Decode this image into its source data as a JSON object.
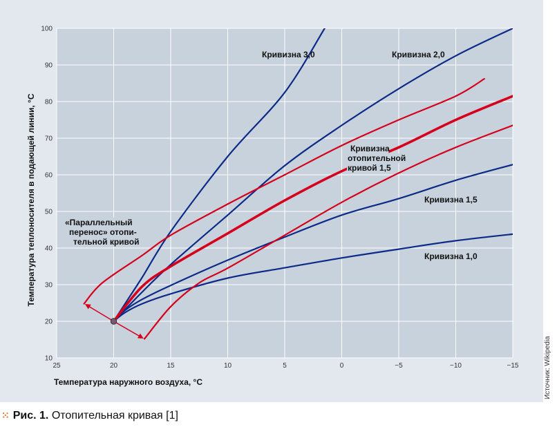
{
  "chart_data": {
    "type": "line",
    "xlabel": "Температура наружного воздуха, °C",
    "ylabel": "Температура теплоносителя в подающей линии, °C",
    "xlim": [
      25,
      -15
    ],
    "ylim": [
      10,
      100
    ],
    "x_ticks": [
      "25",
      "20",
      "15",
      "10",
      "5",
      "0",
      "−5",
      "−10",
      "−15"
    ],
    "x_tick_values": [
      25,
      20,
      15,
      10,
      5,
      0,
      -5,
      -10,
      -15
    ],
    "y_ticks": [
      "10",
      "20",
      "30",
      "40",
      "50",
      "60",
      "70",
      "80",
      "90",
      "100"
    ],
    "y_tick_values": [
      10,
      20,
      30,
      40,
      50,
      60,
      70,
      80,
      90,
      100
    ],
    "grid": true,
    "origin_point": {
      "x": 20,
      "y": 20
    },
    "series": [
      {
        "name": "Кривизна 1,0",
        "color": "#0c2a87",
        "style": "normal",
        "points": [
          [
            20,
            20
          ],
          [
            19,
            22.4
          ],
          [
            17.5,
            24.8
          ],
          [
            15,
            27.5
          ],
          [
            10,
            31.8
          ],
          [
            5,
            34.6
          ],
          [
            0,
            37.3
          ],
          [
            -5,
            39.7
          ],
          [
            -10,
            42
          ],
          [
            -15,
            43.8
          ]
        ]
      },
      {
        "name": "Кривизна 1,5",
        "color": "#0c2a87",
        "style": "normal",
        "points": [
          [
            20,
            20
          ],
          [
            19,
            23
          ],
          [
            17.5,
            26
          ],
          [
            15,
            29.8
          ],
          [
            10,
            36.7
          ],
          [
            5,
            43
          ],
          [
            0,
            49
          ],
          [
            -5,
            53.5
          ],
          [
            -10,
            58.5
          ],
          [
            -15,
            62.8
          ]
        ]
      },
      {
        "name": "Кривизна 2,0",
        "color": "#0c2a87",
        "style": "normal",
        "points": [
          [
            20,
            20
          ],
          [
            18.75,
            24
          ],
          [
            17.5,
            28
          ],
          [
            15,
            35.5
          ],
          [
            10,
            49
          ],
          [
            5,
            62.5
          ],
          [
            0,
            73.5
          ],
          [
            -5,
            83.5
          ],
          [
            -10,
            92.5
          ],
          [
            -15,
            100
          ]
        ]
      },
      {
        "name": "Кривизна 3,0",
        "color": "#0c2a87",
        "style": "normal",
        "points": [
          [
            20,
            20
          ],
          [
            18.75,
            26
          ],
          [
            17.5,
            32
          ],
          [
            15,
            44.5
          ],
          [
            10,
            65
          ],
          [
            5,
            82.5
          ],
          [
            1.5,
            100
          ]
        ]
      },
      {
        "name": "Кривизна отопительной кривой 1,5",
        "color": "#d5001c",
        "style": "bold",
        "points": [
          [
            20,
            20
          ],
          [
            17.5,
            29.5
          ],
          [
            15,
            35
          ],
          [
            10,
            44
          ],
          [
            5,
            53
          ],
          [
            0,
            61
          ],
          [
            -5,
            67.5
          ],
          [
            -10,
            75
          ],
          [
            -15,
            81.5
          ]
        ]
      },
      {
        "name": "Параллельный перенос (вверх)",
        "color": "#d5001c",
        "style": "normal",
        "points": [
          [
            22.6,
            24.8
          ],
          [
            21,
            30.5
          ],
          [
            17.5,
            38
          ],
          [
            15,
            43.5
          ],
          [
            10,
            52
          ],
          [
            5,
            60
          ],
          [
            0,
            68
          ],
          [
            -5,
            75
          ],
          [
            -10,
            81.5
          ],
          [
            -12.5,
            86.2
          ]
        ]
      },
      {
        "name": "Параллельный перенос (вниз)",
        "color": "#d5001c",
        "style": "normal",
        "points": [
          [
            17.3,
            15.2
          ],
          [
            15,
            24
          ],
          [
            12.5,
            30.5
          ],
          [
            10,
            34.5
          ],
          [
            5,
            43.5
          ],
          [
            0,
            52.5
          ],
          [
            -5,
            60.5
          ],
          [
            -10,
            67.5
          ],
          [
            -15,
            73.5
          ]
        ]
      }
    ],
    "annotations": {
      "curve_1_0": "Кривизна 1,0",
      "curve_1_5": "Кривизна 1,5",
      "curve_2_0": "Кривизна 2,0",
      "curve_3_0": "Кривизна 3,0",
      "heating_curve_line1": "Кривизна",
      "heating_curve_line2": "отопительной",
      "heating_curve_line3": "кривой 1,5",
      "parallel_line1": "«Параллельный",
      "parallel_line2": "перенос» отопи-",
      "parallel_line3": "тельной кривой"
    }
  },
  "source_text": "Источник: Wikipedia",
  "caption": {
    "number": "Рис. 1.",
    "text": "Отопительная кривая [1]"
  },
  "colors": {
    "panel_bg": "#e3e8ee",
    "plot_bg": "#c8d2dc",
    "grid": "#ffffff",
    "blue": "#0c2a87",
    "red": "#d5001c",
    "accent_dots": "#e36b2b"
  }
}
